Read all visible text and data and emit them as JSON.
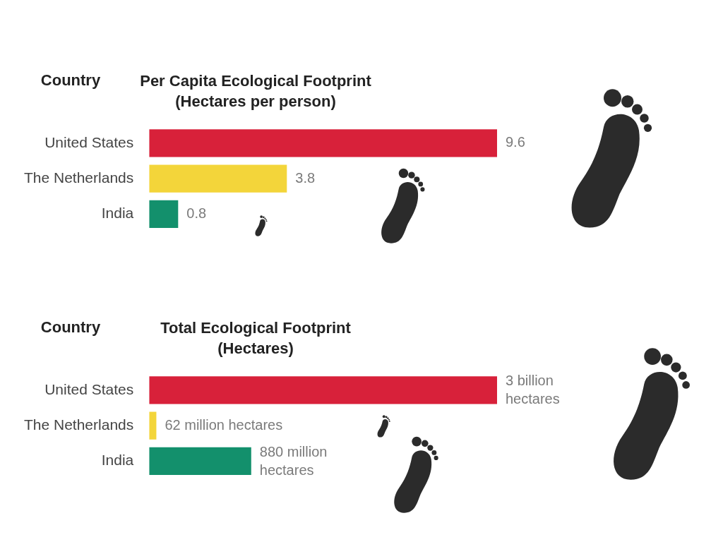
{
  "chart_data": [
    {
      "type": "bar",
      "orientation": "horizontal",
      "title": "Per Capita Ecological Footprint",
      "subtitle": "(Hectares per person)",
      "ylabel": "Country",
      "categories": [
        "United States",
        "The Netherlands",
        "India"
      ],
      "values": [
        9.6,
        3.8,
        0.8
      ],
      "colors": [
        "#d8213a",
        "#f3d53a",
        "#13906c"
      ],
      "tick_labels": "y",
      "data_labels": true
    },
    {
      "type": "bar",
      "orientation": "horizontal",
      "title": "Total Ecological Footprint",
      "subtitle": "(Hectares)",
      "ylabel": "Country",
      "categories": [
        "United States",
        "The Netherlands",
        "India"
      ],
      "values": [
        3000000000,
        62000000,
        880000000
      ],
      "value_labels": [
        "3 billion hectares",
        "62 million hectares",
        "880 million hectares"
      ],
      "colors": [
        "#d8213a",
        "#f3d53a",
        "#13906c"
      ],
      "tick_labels": "y"
    }
  ]
}
